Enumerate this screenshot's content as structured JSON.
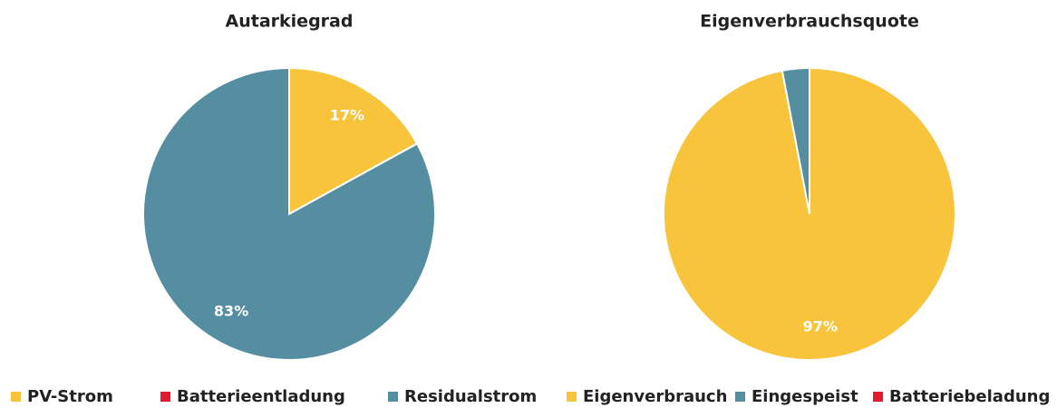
{
  "chart_data": [
    {
      "type": "pie",
      "title": "Autarkiegrad",
      "categories": [
        "PV-Strom",
        "Batterieentladung",
        "Residualstrom"
      ],
      "values": [
        17,
        0,
        83
      ],
      "value_labels": [
        "17%",
        null,
        "83%"
      ],
      "colors": [
        "#f8c43c",
        "#e0192f",
        "#548ea0"
      ]
    },
    {
      "type": "pie",
      "title": "Eigenverbrauchsquote",
      "categories": [
        "Eigenverbrauch",
        "Eingespeist",
        "Batteriebeladung"
      ],
      "values": [
        97,
        3,
        0
      ],
      "value_labels": [
        "97%",
        null,
        null
      ],
      "colors": [
        "#f8c43c",
        "#548ea0",
        "#e0192f"
      ]
    }
  ]
}
